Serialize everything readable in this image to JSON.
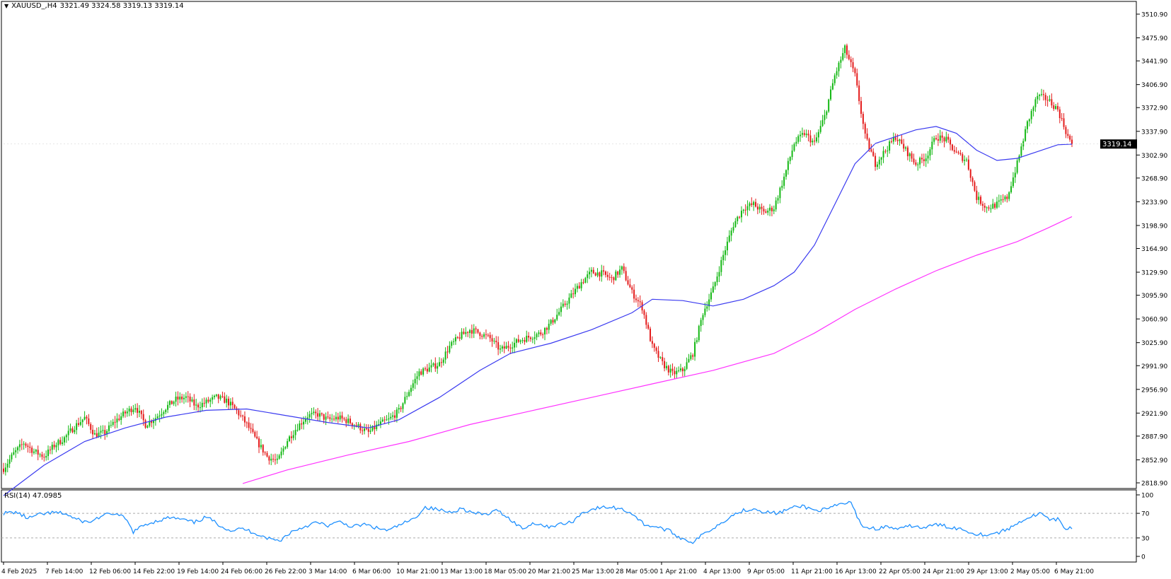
{
  "header": {
    "symbol": "XAUUSD_,H4",
    "ohlc": "3321.49 3324.58 3319.13 3319.14"
  },
  "rsi_panel": {
    "label": "RSI(14) 47.0985",
    "levels": [
      "100",
      "70",
      "30",
      "0"
    ]
  },
  "colors": {
    "bull": "#14b814",
    "bear": "#e41b1b",
    "ma_short": "#3a3af0",
    "ma_long": "#ff33ff",
    "rsi": "#1e90ff",
    "price_tag_bg": "#000000"
  },
  "chart_data": {
    "type": "candlestick",
    "timeframe": "H4",
    "y_ticks": [
      "3510.90",
      "3475.90",
      "3441.90",
      "3406.90",
      "3372.90",
      "3337.90",
      "3302.90",
      "3268.90",
      "3233.90",
      "3198.90",
      "3164.90",
      "3129.90",
      "3095.90",
      "3060.90",
      "3025.90",
      "2991.90",
      "2956.90",
      "2921.90",
      "2887.90",
      "2852.90",
      "2818.90"
    ],
    "ylim": [
      2818.9,
      3510.9
    ],
    "last_price": "3319.14",
    "x_ticks": [
      "4 Feb 2025",
      "7 Feb 14:00",
      "12 Feb 06:00",
      "14 Feb 22:00",
      "19 Feb 14:00",
      "24 Feb 06:00",
      "26 Feb 22:00",
      "3 Mar 14:00",
      "6 Mar 06:00",
      "10 Mar 21:00",
      "13 Mar 13:00",
      "18 Mar 05:00",
      "20 Mar 21:00",
      "25 Mar 13:00",
      "28 Mar 05:00",
      "1 Apr 21:00",
      "4 Apr 13:00",
      "9 Apr 05:00",
      "11 Apr 21:00",
      "16 Apr 13:00",
      "22 Apr 05:00",
      "24 Apr 21:00",
      "29 Apr 13:00",
      "2 May 05:00",
      "6 May 21:00"
    ],
    "price_path": [
      [
        0,
        2840
      ],
      [
        5,
        2862
      ],
      [
        10,
        2878
      ],
      [
        15,
        2865
      ],
      [
        20,
        2858
      ],
      [
        25,
        2874
      ],
      [
        30,
        2885
      ],
      [
        35,
        2902
      ],
      [
        40,
        2915
      ],
      [
        45,
        2890
      ],
      [
        50,
        2893
      ],
      [
        55,
        2910
      ],
      [
        60,
        2922
      ],
      [
        65,
        2932
      ],
      [
        70,
        2905
      ],
      [
        75,
        2915
      ],
      [
        80,
        2930
      ],
      [
        85,
        2942
      ],
      [
        90,
        2945
      ],
      [
        95,
        2932
      ],
      [
        100,
        2938
      ],
      [
        105,
        2945
      ],
      [
        110,
        2940
      ],
      [
        115,
        2925
      ],
      [
        120,
        2905
      ],
      [
        125,
        2880
      ],
      [
        130,
        2858
      ],
      [
        135,
        2850
      ],
      [
        140,
        2882
      ],
      [
        145,
        2902
      ],
      [
        150,
        2918
      ],
      [
        155,
        2920
      ],
      [
        160,
        2912
      ],
      [
        165,
        2915
      ],
      [
        170,
        2910
      ],
      [
        175,
        2902
      ],
      [
        180,
        2893
      ],
      [
        185,
        2905
      ],
      [
        190,
        2912
      ],
      [
        195,
        2925
      ],
      [
        200,
        2955
      ],
      [
        205,
        2982
      ],
      [
        210,
        2988
      ],
      [
        215,
        2995
      ],
      [
        220,
        3020
      ],
      [
        225,
        3035
      ],
      [
        230,
        3045
      ],
      [
        235,
        3040
      ],
      [
        240,
        3032
      ],
      [
        245,
        3015
      ],
      [
        250,
        3022
      ],
      [
        255,
        3030
      ],
      [
        260,
        3035
      ],
      [
        265,
        3040
      ],
      [
        270,
        3055
      ],
      [
        275,
        3075
      ],
      [
        280,
        3095
      ],
      [
        285,
        3115
      ],
      [
        290,
        3130
      ],
      [
        295,
        3128
      ],
      [
        300,
        3120
      ],
      [
        305,
        3135
      ],
      [
        310,
        3100
      ],
      [
        315,
        3078
      ],
      [
        320,
        3020
      ],
      [
        325,
        2995
      ],
      [
        330,
        2980
      ],
      [
        335,
        2985
      ],
      [
        340,
        3010
      ],
      [
        345,
        3070
      ],
      [
        350,
        3105
      ],
      [
        355,
        3155
      ],
      [
        360,
        3200
      ],
      [
        365,
        3225
      ],
      [
        370,
        3230
      ],
      [
        375,
        3218
      ],
      [
        380,
        3225
      ],
      [
        385,
        3270
      ],
      [
        390,
        3320
      ],
      [
        395,
        3335
      ],
      [
        400,
        3320
      ],
      [
        405,
        3360
      ],
      [
        410,
        3420
      ],
      [
        415,
        3460
      ],
      [
        420,
        3420
      ],
      [
        425,
        3330
      ],
      [
        430,
        3290
      ],
      [
        435,
        3310
      ],
      [
        440,
        3330
      ],
      [
        445,
        3310
      ],
      [
        450,
        3290
      ],
      [
        455,
        3300
      ],
      [
        460,
        3330
      ],
      [
        465,
        3325
      ],
      [
        470,
        3305
      ],
      [
        475,
        3295
      ],
      [
        480,
        3240
      ],
      [
        485,
        3225
      ],
      [
        490,
        3230
      ],
      [
        495,
        3240
      ],
      [
        500,
        3290
      ],
      [
        505,
        3350
      ],
      [
        510,
        3390
      ],
      [
        515,
        3385
      ],
      [
        520,
        3370
      ],
      [
        525,
        3330
      ],
      [
        527,
        3319.14
      ]
    ],
    "ma_short": [
      [
        0,
        2800
      ],
      [
        20,
        2845
      ],
      [
        40,
        2880
      ],
      [
        60,
        2900
      ],
      [
        80,
        2916
      ],
      [
        100,
        2926
      ],
      [
        120,
        2928
      ],
      [
        140,
        2918
      ],
      [
        160,
        2908
      ],
      [
        180,
        2900
      ],
      [
        195,
        2912
      ],
      [
        215,
        2945
      ],
      [
        235,
        2985
      ],
      [
        250,
        3010
      ],
      [
        270,
        3025
      ],
      [
        290,
        3045
      ],
      [
        310,
        3070
      ],
      [
        320,
        3090
      ],
      [
        335,
        3088
      ],
      [
        350,
        3080
      ],
      [
        365,
        3090
      ],
      [
        380,
        3110
      ],
      [
        390,
        3130
      ],
      [
        400,
        3170
      ],
      [
        410,
        3230
      ],
      [
        420,
        3290
      ],
      [
        430,
        3320
      ],
      [
        440,
        3330
      ],
      [
        450,
        3340
      ],
      [
        460,
        3345
      ],
      [
        470,
        3335
      ],
      [
        480,
        3310
      ],
      [
        490,
        3295
      ],
      [
        500,
        3298
      ],
      [
        510,
        3308
      ],
      [
        520,
        3318
      ],
      [
        527,
        3319
      ]
    ],
    "ma_long": [
      [
        118,
        2818
      ],
      [
        140,
        2838
      ],
      [
        170,
        2860
      ],
      [
        200,
        2880
      ],
      [
        230,
        2905
      ],
      [
        260,
        2925
      ],
      [
        290,
        2945
      ],
      [
        320,
        2965
      ],
      [
        350,
        2985
      ],
      [
        380,
        3010
      ],
      [
        400,
        3040
      ],
      [
        420,
        3075
      ],
      [
        440,
        3105
      ],
      [
        460,
        3132
      ],
      [
        480,
        3155
      ],
      [
        500,
        3175
      ],
      [
        515,
        3195
      ],
      [
        527,
        3212
      ]
    ],
    "rsi": [
      [
        0,
        70
      ],
      [
        6,
        72
      ],
      [
        12,
        62
      ],
      [
        18,
        68
      ],
      [
        24,
        71
      ],
      [
        30,
        70
      ],
      [
        36,
        60
      ],
      [
        42,
        55
      ],
      [
        48,
        65
      ],
      [
        54,
        70
      ],
      [
        60,
        62
      ],
      [
        64,
        40
      ],
      [
        70,
        52
      ],
      [
        76,
        58
      ],
      [
        82,
        63
      ],
      [
        88,
        60
      ],
      [
        94,
        55
      ],
      [
        100,
        64
      ],
      [
        106,
        52
      ],
      [
        112,
        42
      ],
      [
        118,
        45
      ],
      [
        124,
        38
      ],
      [
        130,
        30
      ],
      [
        136,
        25
      ],
      [
        142,
        40
      ],
      [
        148,
        48
      ],
      [
        154,
        55
      ],
      [
        160,
        50
      ],
      [
        166,
        56
      ],
      [
        172,
        48
      ],
      [
        178,
        52
      ],
      [
        184,
        46
      ],
      [
        190,
        42
      ],
      [
        196,
        52
      ],
      [
        202,
        60
      ],
      [
        208,
        80
      ],
      [
        214,
        76
      ],
      [
        220,
        72
      ],
      [
        226,
        78
      ],
      [
        232,
        70
      ],
      [
        238,
        68
      ],
      [
        244,
        75
      ],
      [
        250,
        60
      ],
      [
        256,
        45
      ],
      [
        262,
        55
      ],
      [
        268,
        48
      ],
      [
        274,
        52
      ],
      [
        280,
        55
      ],
      [
        286,
        72
      ],
      [
        292,
        78
      ],
      [
        298,
        80
      ],
      [
        304,
        78
      ],
      [
        310,
        70
      ],
      [
        316,
        52
      ],
      [
        322,
        48
      ],
      [
        328,
        42
      ],
      [
        334,
        30
      ],
      [
        340,
        23
      ],
      [
        346,
        38
      ],
      [
        352,
        50
      ],
      [
        358,
        64
      ],
      [
        364,
        74
      ],
      [
        370,
        78
      ],
      [
        376,
        72
      ],
      [
        382,
        70
      ],
      [
        388,
        78
      ],
      [
        394,
        82
      ],
      [
        400,
        75
      ],
      [
        406,
        76
      ],
      [
        412,
        84
      ],
      [
        418,
        88
      ],
      [
        420,
        72
      ],
      [
        424,
        48
      ],
      [
        430,
        45
      ],
      [
        436,
        48
      ],
      [
        442,
        44
      ],
      [
        448,
        50
      ],
      [
        454,
        46
      ],
      [
        460,
        52
      ],
      [
        466,
        48
      ],
      [
        472,
        45
      ],
      [
        478,
        38
      ],
      [
        484,
        35
      ],
      [
        490,
        38
      ],
      [
        496,
        45
      ],
      [
        502,
        58
      ],
      [
        508,
        66
      ],
      [
        512,
        70
      ],
      [
        516,
        58
      ],
      [
        520,
        60
      ],
      [
        524,
        45
      ],
      [
        527,
        47
      ]
    ],
    "rsi_levels": [
      70,
      30
    ],
    "rsi_ylim": [
      0,
      100
    ]
  }
}
